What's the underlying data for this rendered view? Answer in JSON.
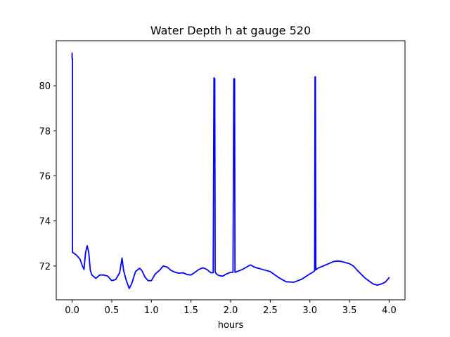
{
  "chart_data": {
    "type": "line",
    "title": "Water Depth h at gauge 520",
    "xlabel": "hours",
    "ylabel": "",
    "xlim": [
      -0.2,
      4.2
    ],
    "ylim": [
      70.5,
      82.0
    ],
    "x_ticks": [
      0.0,
      0.5,
      1.0,
      1.5,
      2.0,
      2.5,
      3.0,
      3.5,
      4.0
    ],
    "x_tick_labels": [
      "0.0",
      "0.5",
      "1.0",
      "1.5",
      "2.0",
      "2.5",
      "3.0",
      "3.5",
      "4.0"
    ],
    "y_ticks": [
      72,
      74,
      76,
      78,
      80
    ],
    "y_tick_labels": [
      "72",
      "74",
      "76",
      "78",
      "80"
    ],
    "grid": false,
    "series": [
      {
        "color": "#0000ff",
        "x": [
          0.0,
          0.0,
          0.005,
          0.005,
          0.01,
          0.05,
          0.1,
          0.13,
          0.15,
          0.17,
          0.19,
          0.21,
          0.23,
          0.25,
          0.3,
          0.35,
          0.4,
          0.45,
          0.5,
          0.55,
          0.6,
          0.63,
          0.65,
          0.68,
          0.72,
          0.75,
          0.8,
          0.85,
          0.88,
          0.92,
          0.96,
          1.0,
          1.05,
          1.1,
          1.15,
          1.2,
          1.25,
          1.3,
          1.35,
          1.4,
          1.45,
          1.5,
          1.55,
          1.6,
          1.65,
          1.7,
          1.75,
          1.78,
          1.79,
          1.795,
          1.8,
          1.805,
          1.81,
          1.83,
          1.85,
          1.9,
          1.95,
          2.0,
          2.03,
          2.04,
          2.045,
          2.05,
          2.055,
          2.06,
          2.1,
          2.15,
          2.2,
          2.25,
          2.3,
          2.35,
          2.4,
          2.5,
          2.6,
          2.7,
          2.8,
          2.9,
          3.0,
          3.05,
          3.06,
          3.065,
          3.07,
          3.075,
          3.08,
          3.1,
          3.2,
          3.3,
          3.35,
          3.4,
          3.5,
          3.55,
          3.6,
          3.7,
          3.8,
          3.85,
          3.9,
          3.95,
          4.0
        ],
        "y": [
          81.45,
          81.2,
          81.2,
          72.6,
          72.6,
          72.5,
          72.3,
          72.0,
          71.85,
          72.6,
          72.9,
          72.6,
          71.8,
          71.6,
          71.45,
          71.6,
          71.6,
          71.55,
          71.35,
          71.4,
          71.7,
          72.35,
          71.8,
          71.4,
          71.0,
          71.2,
          71.75,
          71.9,
          71.8,
          71.5,
          71.35,
          71.35,
          71.65,
          71.8,
          72.0,
          71.95,
          71.8,
          71.72,
          71.68,
          71.7,
          71.62,
          71.6,
          71.72,
          71.85,
          71.92,
          71.85,
          71.7,
          71.7,
          80.35,
          80.3,
          80.32,
          71.75,
          71.7,
          71.62,
          71.58,
          71.55,
          71.65,
          71.72,
          71.72,
          80.3,
          80.32,
          80.3,
          71.72,
          71.72,
          71.78,
          71.85,
          71.95,
          72.05,
          71.95,
          71.9,
          71.85,
          71.75,
          71.5,
          71.3,
          71.28,
          71.42,
          71.65,
          71.75,
          71.8,
          80.4,
          80.4,
          71.82,
          71.85,
          71.9,
          72.05,
          72.2,
          72.22,
          72.2,
          72.1,
          72.0,
          71.8,
          71.45,
          71.2,
          71.15,
          71.2,
          71.28,
          71.48
        ]
      }
    ]
  }
}
